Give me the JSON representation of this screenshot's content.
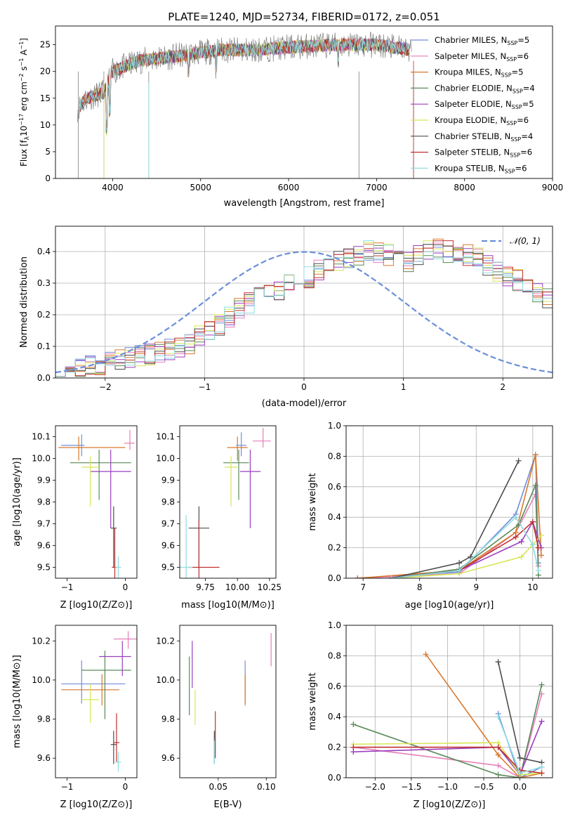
{
  "figure": {
    "title": "PLATE=1240, MJD=52734, FIBERID=0172, z=0.051"
  },
  "series": [
    {
      "name": "Chabrier MILES, N_SSP=5",
      "label": "Chabrier MILES, N",
      "sub": "SSP",
      "tail": "=5",
      "color": "#6f8fd9"
    },
    {
      "name": "Salpeter MILES, N_SSP=6",
      "label": "Salpeter MILES, N",
      "sub": "SSP",
      "tail": "=6",
      "color": "#e57fb9"
    },
    {
      "name": "Kroupa MILES, N_SSP=5",
      "label": "Kroupa MILES, N",
      "sub": "SSP",
      "tail": "=5",
      "color": "#d9782c"
    },
    {
      "name": "Chabrier ELODIE, N_SSP=4",
      "label": "Chabrier ELODIE, N",
      "sub": "SSP",
      "tail": "=4",
      "color": "#5a8a5a"
    },
    {
      "name": "Salpeter ELODIE, N_SSP=5",
      "label": "Salpeter ELODIE, N",
      "sub": "SSP",
      "tail": "=5",
      "color": "#9b3fbf"
    },
    {
      "name": "Kroupa ELODIE, N_SSP=6",
      "label": "Kroupa ELODIE, N",
      "sub": "SSP",
      "tail": "=6",
      "color": "#d7e655"
    },
    {
      "name": "Chabrier STELIB, N_SSP=4",
      "label": "Chabrier STELIB, N",
      "sub": "SSP",
      "tail": "=4",
      "color": "#4d4d4d"
    },
    {
      "name": "Salpeter STELIB, N_SSP=6",
      "label": "Salpeter STELIB, N",
      "sub": "SSP",
      "tail": "=6",
      "color": "#c03030"
    },
    {
      "name": "Kroupa STELIB, N_SSP=6",
      "label": "Kroupa STELIB, N",
      "sub": "SSP",
      "tail": "=6",
      "color": "#8fdde0"
    }
  ],
  "chart_data": [
    {
      "id": "spectrum",
      "type": "line",
      "xlabel": "wavelength [Angstrom, rest frame]",
      "ylabel": "Flux [f_λ 10^-17 erg cm^-2 s^-1 A^-1]",
      "xlim": [
        3350,
        9000
      ],
      "ylim": [
        0,
        28.5
      ],
      "xticks": [
        4000,
        5000,
        6000,
        7000,
        8000,
        9000
      ],
      "yticks": [
        0,
        5,
        10,
        15,
        20,
        25
      ],
      "grid": false,
      "legend": "right",
      "note": "observed flux in grey; 9 model fits overplotted",
      "approx_shape": {
        "x": [
          3600,
          3700,
          3900,
          4000,
          4300,
          4800,
          5200,
          5600,
          6000,
          6500,
          6800,
          7000,
          7400
        ],
        "y": [
          13,
          15,
          16,
          20,
          22,
          23,
          24,
          24,
          24.5,
          25,
          25,
          25,
          24
        ]
      }
    },
    {
      "id": "residuals",
      "type": "histogram",
      "xlabel": "(data-model)/error",
      "ylabel": "Normed distribution",
      "xlim": [
        -2.5,
        2.5
      ],
      "ylim": [
        0,
        0.48
      ],
      "xticks": [
        -2,
        -1,
        0,
        1,
        2
      ],
      "yticks": [
        0.0,
        0.1,
        0.2,
        0.3,
        0.4
      ],
      "grid": true,
      "legend": "top-right",
      "reference": {
        "name": "N(0,1)",
        "label": "𝒩(0, 1)",
        "color": "#6a8fd9"
      },
      "bin_width": 0.1,
      "bin_start": -2.5,
      "envelope": [
        0.03,
        0.03,
        0.035,
        0.04,
        0.045,
        0.05,
        0.06,
        0.065,
        0.07,
        0.075,
        0.08,
        0.09,
        0.1,
        0.11,
        0.13,
        0.15,
        0.17,
        0.19,
        0.22,
        0.24,
        0.26,
        0.27,
        0.28,
        0.3,
        0.31,
        0.32,
        0.34,
        0.36,
        0.37,
        0.38,
        0.39,
        0.4,
        0.4,
        0.39,
        0.38,
        0.37,
        0.39,
        0.4,
        0.41,
        0.4,
        0.39,
        0.39,
        0.38,
        0.36,
        0.34,
        0.32,
        0.31,
        0.29,
        0.27,
        0.25,
        0.23,
        0.21,
        0.19,
        0.17,
        0.15,
        0.13,
        0.11,
        0.1,
        0.09,
        0.08,
        0.07,
        0.06,
        0.055,
        0.05,
        0.045,
        0.04,
        0.035,
        0.03,
        0.025,
        0.025
      ]
    },
    {
      "id": "age-vs-Z",
      "type": "errorbar",
      "xlabel": "Z [log10(Z/Z⊙)]",
      "ylabel": "age  [log10(age/yr)]",
      "xlim": [
        -1.2,
        0.2
      ],
      "ylim": [
        9.45,
        10.15
      ],
      "xticks": [
        -1,
        0
      ],
      "yticks": [
        9.5,
        9.6,
        9.7,
        9.8,
        9.9,
        10.0,
        10.1
      ],
      "points": [
        {
          "s": 0,
          "x": -0.75,
          "xerr": [
            0.35,
            0.05
          ],
          "y": 10.06,
          "yerr": [
            0.05,
            0.05
          ]
        },
        {
          "s": 1,
          "x": 0.08,
          "xerr": [
            0.1,
            0.08
          ],
          "y": 10.07,
          "yerr": [
            0.03,
            0.06
          ]
        },
        {
          "s": 2,
          "x": -0.8,
          "xerr": [
            0.35,
            0.8
          ],
          "y": 10.05,
          "yerr": [
            0.06,
            0.05
          ]
        },
        {
          "s": 3,
          "x": -0.45,
          "xerr": [
            0.5,
            0.55
          ],
          "y": 9.98,
          "yerr": [
            0.17,
            0.06
          ]
        },
        {
          "s": 4,
          "x": -0.25,
          "xerr": [
            0.35,
            0.35
          ],
          "y": 9.94,
          "yerr": [
            0.26,
            0.1
          ]
        },
        {
          "s": 5,
          "x": -0.6,
          "xerr": [
            0.15,
            0.15
          ],
          "y": 9.96,
          "yerr": [
            0.18,
            0.05
          ]
        },
        {
          "s": 6,
          "x": -0.2,
          "xerr": [
            0.05,
            0.05
          ],
          "y": 9.68,
          "yerr": [
            0.18,
            0.1
          ]
        },
        {
          "s": 7,
          "x": -0.18,
          "xerr": [
            0.05,
            0.05
          ],
          "y": 9.5,
          "yerr": [
            0.05,
            0.18
          ]
        },
        {
          "s": 8,
          "x": -0.12,
          "xerr": [
            0.05,
            0.05
          ],
          "y": 9.5,
          "yerr": [
            0.05,
            0.05
          ]
        }
      ]
    },
    {
      "id": "age-vs-mass",
      "type": "errorbar",
      "xlabel": "mass [log10(M/M⊙)]",
      "ylabel": "",
      "xlim": [
        9.55,
        10.3
      ],
      "ylim": [
        9.45,
        10.15
      ],
      "xticks": [
        9.75,
        10.0,
        10.25
      ],
      "xticklabels": [
        "9.75",
        "10.00",
        "10.25"
      ],
      "yticks": [
        9.5,
        9.6,
        9.7,
        9.8,
        9.9,
        10.0,
        10.1
      ],
      "points": [
        {
          "s": 0,
          "x": 10.03,
          "xerr": [
            0.04,
            0.04
          ],
          "y": 10.06,
          "yerr": [
            0.05,
            0.06
          ]
        },
        {
          "s": 1,
          "x": 10.2,
          "xerr": [
            0.08,
            0.06
          ],
          "y": 10.08,
          "yerr": [
            0.03,
            0.06
          ]
        },
        {
          "s": 2,
          "x": 10.0,
          "xerr": [
            0.08,
            0.08
          ],
          "y": 10.05,
          "yerr": [
            0.06,
            0.05
          ]
        },
        {
          "s": 3,
          "x": 10.01,
          "xerr": [
            0.12,
            0.08
          ],
          "y": 9.98,
          "yerr": [
            0.17,
            0.06
          ]
        },
        {
          "s": 4,
          "x": 10.1,
          "xerr": [
            0.08,
            0.08
          ],
          "y": 9.94,
          "yerr": [
            0.26,
            0.1
          ]
        },
        {
          "s": 5,
          "x": 9.95,
          "xerr": [
            0.05,
            0.05
          ],
          "y": 9.96,
          "yerr": [
            0.18,
            0.05
          ]
        },
        {
          "s": 6,
          "x": 9.7,
          "xerr": [
            0.08,
            0.08
          ],
          "y": 9.68,
          "yerr": [
            0.18,
            0.1
          ]
        },
        {
          "s": 7,
          "x": 9.7,
          "xerr": [
            0.08,
            0.16
          ],
          "y": 9.5,
          "yerr": [
            0.05,
            0.22
          ]
        },
        {
          "s": 8,
          "x": 9.6,
          "xerr": [
            0.05,
            0.05
          ],
          "y": 9.5,
          "yerr": [
            0.05,
            0.24
          ]
        }
      ]
    },
    {
      "id": "weight-vs-age",
      "type": "line",
      "xlabel": "age  [log10(age/yr)]",
      "ylabel": "mass weight",
      "xlim": [
        6.7,
        10.35
      ],
      "ylim": [
        0,
        1.0
      ],
      "xticks": [
        7,
        8,
        9,
        10
      ],
      "yticks": [
        0.0,
        0.2,
        0.4,
        0.6,
        0.8,
        1.0
      ],
      "grid": true,
      "lines": [
        {
          "s": 0,
          "x": [
            6.9,
            8.7,
            9.7,
            10.05,
            10.1
          ],
          "y": [
            0.0,
            0.04,
            0.42,
            0.81,
            0.1
          ]
        },
        {
          "s": 1,
          "x": [
            6.9,
            8.7,
            9.7,
            10.05,
            10.1
          ],
          "y": [
            0.0,
            0.03,
            0.3,
            0.55,
            0.08
          ]
        },
        {
          "s": 2,
          "x": [
            6.9,
            8.7,
            9.7,
            10.05,
            10.15
          ],
          "y": [
            0.0,
            0.05,
            0.3,
            0.81,
            0.15
          ]
        },
        {
          "s": 3,
          "x": [
            7.5,
            8.7,
            9.75,
            10.05,
            10.1
          ],
          "y": [
            0.0,
            0.06,
            0.35,
            0.61,
            0.02
          ]
        },
        {
          "s": 4,
          "x": [
            7.5,
            8.7,
            9.8,
            10.0,
            10.15
          ],
          "y": [
            0.0,
            0.05,
            0.24,
            0.37,
            0.2
          ]
        },
        {
          "s": 5,
          "x": [
            7.5,
            8.7,
            9.8,
            10.0,
            10.15
          ],
          "y": [
            0.0,
            0.03,
            0.14,
            0.22,
            0.28
          ]
        },
        {
          "s": 6,
          "x": [
            7.5,
            8.7,
            8.9,
            9.75
          ],
          "y": [
            0.0,
            0.1,
            0.14,
            0.77
          ]
        },
        {
          "s": 7,
          "x": [
            7.5,
            8.7,
            9.7,
            10.0,
            10.1
          ],
          "y": [
            0.0,
            0.05,
            0.27,
            0.37,
            0.2
          ]
        },
        {
          "s": 8,
          "x": [
            7.5,
            8.7,
            9.7,
            10.0,
            10.1
          ],
          "y": [
            0.0,
            0.05,
            0.4,
            0.22,
            0.05
          ]
        }
      ]
    },
    {
      "id": "mass-vs-Z",
      "type": "errorbar",
      "xlabel": "Z [log10(Z/Z⊙)]",
      "ylabel": "mass [log10(M/M⊙)]",
      "xlim": [
        -1.2,
        0.2
      ],
      "ylim": [
        9.5,
        10.28
      ],
      "xticks": [
        -1,
        0
      ],
      "yticks": [
        9.6,
        9.8,
        10.0,
        10.2
      ],
      "points": [
        {
          "s": 0,
          "x": -0.75,
          "xerr": [
            0.35,
            0.75
          ],
          "y": 9.98,
          "yerr": [
            0.1,
            0.12
          ]
        },
        {
          "s": 1,
          "x": 0.05,
          "xerr": [
            0.25,
            0.15
          ],
          "y": 10.21,
          "yerr": [
            0.05,
            0.04
          ]
        },
        {
          "s": 2,
          "x": -0.4,
          "xerr": [
            0.7,
            0.3
          ],
          "y": 9.95,
          "yerr": [
            0.08,
            0.08
          ]
        },
        {
          "s": 3,
          "x": -0.35,
          "xerr": [
            0.4,
            0.45
          ],
          "y": 10.05,
          "yerr": [
            0.25,
            0.1
          ]
        },
        {
          "s": 4,
          "x": -0.05,
          "xerr": [
            0.4,
            0.15
          ],
          "y": 10.12,
          "yerr": [
            0.1,
            0.08
          ]
        },
        {
          "s": 5,
          "x": -0.6,
          "xerr": [
            0.15,
            0.15
          ],
          "y": 9.9,
          "yerr": [
            0.12,
            0.08
          ]
        },
        {
          "s": 6,
          "x": -0.2,
          "xerr": [
            0.05,
            0.05
          ],
          "y": 9.67,
          "yerr": [
            0.1,
            0.07
          ]
        },
        {
          "s": 7,
          "x": -0.15,
          "xerr": [
            0.05,
            0.05
          ],
          "y": 9.68,
          "yerr": [
            0.1,
            0.15
          ]
        },
        {
          "s": 8,
          "x": -0.12,
          "xerr": [
            0.05,
            0.05
          ],
          "y": 9.58,
          "yerr": [
            0.05,
            0.05
          ]
        }
      ]
    },
    {
      "id": "mass-vs-EBV",
      "type": "errorbar",
      "xlabel": "E(B-V)",
      "ylabel": "",
      "xlim": [
        0.01,
        0.11
      ],
      "ylim": [
        9.5,
        10.28
      ],
      "xticks": [
        0.05,
        0.1
      ],
      "xticklabels": [
        "0.05",
        "0.10"
      ],
      "yticks": [
        9.6,
        9.8,
        10.0,
        10.2
      ],
      "points": [
        {
          "s": 0,
          "x": 0.078,
          "xerr": [
            0,
            0
          ],
          "y": 9.98,
          "yerr": [
            0.1,
            0.12
          ]
        },
        {
          "s": 1,
          "x": 0.105,
          "xerr": [
            0,
            0
          ],
          "y": 10.16,
          "yerr": [
            0.09,
            0.08
          ]
        },
        {
          "s": 2,
          "x": 0.078,
          "xerr": [
            0,
            0
          ],
          "y": 9.95,
          "yerr": [
            0.08,
            0.08
          ]
        },
        {
          "s": 3,
          "x": 0.02,
          "xerr": [
            0,
            0
          ],
          "y": 10.02,
          "yerr": [
            0.2,
            0.1
          ]
        },
        {
          "s": 4,
          "x": 0.023,
          "xerr": [
            0,
            0
          ],
          "y": 10.1,
          "yerr": [
            0.14,
            0.1
          ]
        },
        {
          "s": 5,
          "x": 0.026,
          "xerr": [
            0,
            0
          ],
          "y": 9.86,
          "yerr": [
            0.09,
            0.09
          ]
        },
        {
          "s": 6,
          "x": 0.046,
          "xerr": [
            0,
            0
          ],
          "y": 9.67,
          "yerr": [
            0.1,
            0.07
          ]
        },
        {
          "s": 7,
          "x": 0.047,
          "xerr": [
            0,
            0
          ],
          "y": 9.7,
          "yerr": [
            0.1,
            0.14
          ]
        },
        {
          "s": 8,
          "x": 0.046,
          "xerr": [
            0,
            0
          ],
          "y": 9.62,
          "yerr": [
            0.05,
            0.07
          ]
        }
      ]
    },
    {
      "id": "weight-vs-Z",
      "type": "line",
      "xlabel": "Z [log10(Z/Z⊙)]",
      "ylabel": "mass weight",
      "xlim": [
        -2.4,
        0.45
      ],
      "ylim": [
        0,
        1.0
      ],
      "xticks": [
        -2.0,
        -1.5,
        -1.0,
        -0.5,
        0.0
      ],
      "xticklabels": [
        "−2.0",
        "−1.5",
        "−1.0",
        "−0.5",
        "0.0"
      ],
      "yticks": [
        0.0,
        0.2,
        0.4,
        0.6,
        0.8,
        1.0
      ],
      "grid": true,
      "lines": [
        {
          "s": 0,
          "x": [
            -0.3,
            0.0,
            0.3
          ],
          "y": [
            0.42,
            0.0,
            0.07
          ]
        },
        {
          "s": 1,
          "x": [
            -2.3,
            -0.3,
            0.0,
            0.3
          ],
          "y": [
            0.2,
            0.08,
            0.0,
            0.55
          ]
        },
        {
          "s": 2,
          "x": [
            -1.3,
            -0.3,
            0.0,
            0.3
          ],
          "y": [
            0.81,
            0.15,
            0.0,
            0.03
          ]
        },
        {
          "s": 3,
          "x": [
            -2.3,
            -0.3,
            0.0,
            0.3
          ],
          "y": [
            0.35,
            0.02,
            0.0,
            0.61
          ]
        },
        {
          "s": 4,
          "x": [
            -2.3,
            -0.3,
            0.0,
            0.3
          ],
          "y": [
            0.17,
            0.2,
            0.02,
            0.37
          ]
        },
        {
          "s": 5,
          "x": [
            -2.3,
            -0.3,
            0.0,
            0.3
          ],
          "y": [
            0.22,
            0.23,
            0.02,
            0.03
          ]
        },
        {
          "s": 6,
          "x": [
            -0.3,
            0.0,
            0.3
          ],
          "y": [
            0.76,
            0.13,
            0.1
          ]
        },
        {
          "s": 7,
          "x": [
            -2.3,
            -0.3,
            0.0,
            0.3
          ],
          "y": [
            0.2,
            0.2,
            0.05,
            0.03
          ]
        },
        {
          "s": 8,
          "x": [
            -0.3,
            0.0,
            0.3
          ],
          "y": [
            0.4,
            0.03,
            0.07
          ]
        }
      ]
    }
  ]
}
